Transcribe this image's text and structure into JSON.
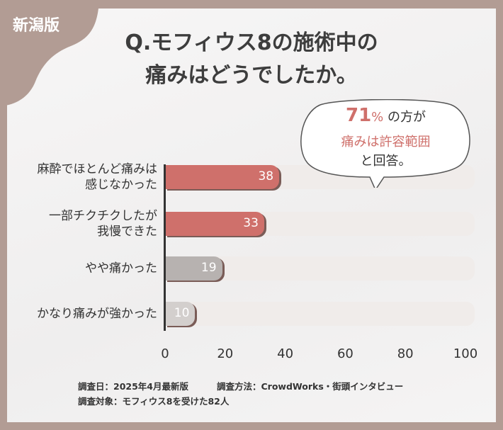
{
  "tag": "新潟版",
  "title_lines": [
    "Q.モフィウス8の施術中の",
    "痛みはどうでしたか。"
  ],
  "callout": {
    "pct": "71",
    "pct_unit": "%",
    "line1_rest": "の方が",
    "line2": "痛みは許容範囲",
    "line3": "と回答。"
  },
  "footer": {
    "date": "調査日：2025年4月最新版",
    "method": "調査方法：CrowdWorks・街頭インタビュー",
    "target": "調査対象：モフィウス8を受けた82人"
  },
  "colors": {
    "frame": "#b29c94",
    "highlight": "#cf706b",
    "neutral": "#b7b2b0",
    "text": "#333333"
  },
  "chart_data": {
    "type": "bar",
    "orientation": "horizontal",
    "categories": [
      [
        "麻酔でほとんど痛みは",
        "感じなかった"
      ],
      [
        "一部チクチクしたが",
        "我慢できた"
      ],
      [
        "やや痛かった"
      ],
      [
        "かなり痛みが強かった"
      ]
    ],
    "values": [
      38,
      33,
      19,
      10
    ],
    "value_labels": [
      "38",
      "33",
      "19",
      "10"
    ],
    "xlim": [
      0,
      100
    ],
    "xticks": [
      "0",
      "20",
      "40",
      "60",
      "80",
      "100"
    ],
    "bar_colors": [
      "#cf706b",
      "#cf706b",
      "#b7b2b0",
      "#d3cfcd"
    ],
    "grid": false
  }
}
